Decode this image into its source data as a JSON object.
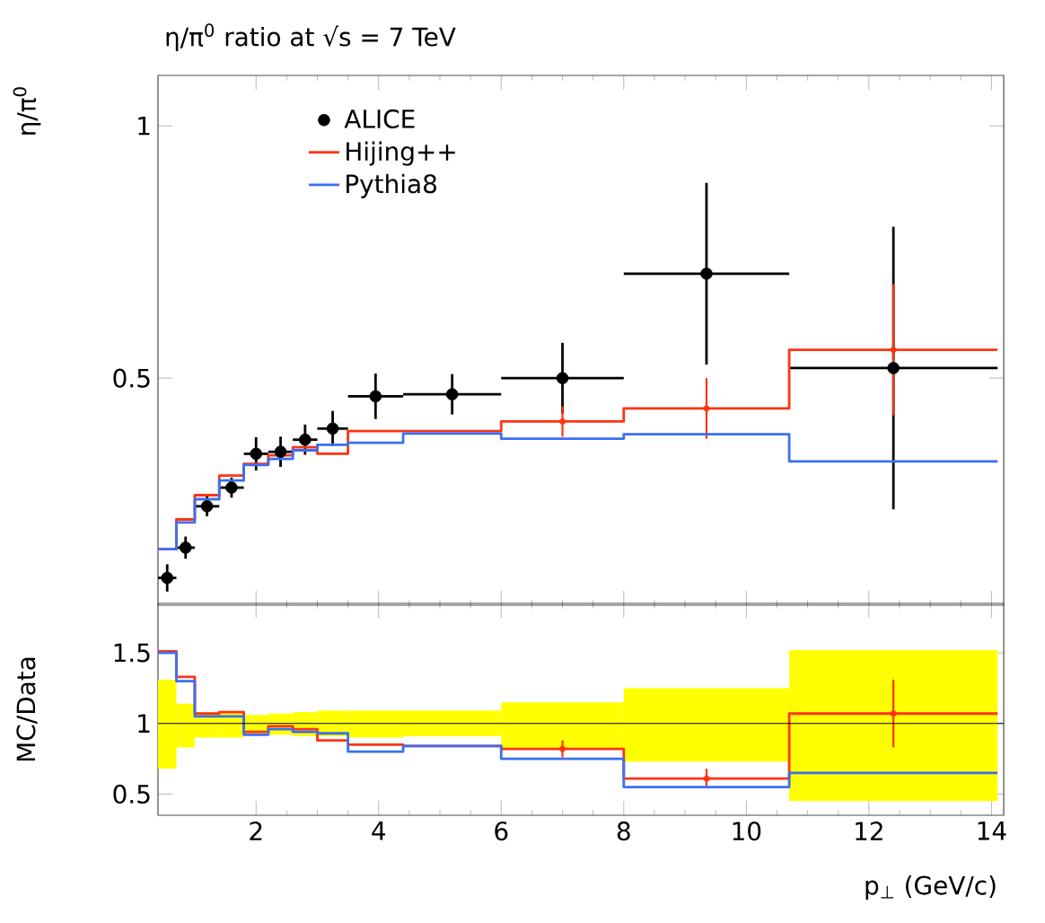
{
  "chart_data": [
    {
      "type": "histogram",
      "title": "η/π$^{0}$ ratio at √s = 7 TeV",
      "ylabel": "η/π$^{0}$",
      "bins": [
        0.4,
        0.7,
        1.0,
        1.4,
        1.8,
        2.2,
        2.6,
        3.0,
        3.5,
        4.4,
        6,
        8,
        10.7,
        14.1
      ],
      "xlim": [
        0.4,
        14.2
      ],
      "xticks": [
        2,
        4,
        6,
        8,
        10,
        12,
        14
      ],
      "ylim": [
        0.05,
        1.1
      ],
      "yticks": [
        0.5,
        1
      ],
      "tick_labels": "y",
      "legend": "top left",
      "grid": false,
      "series": [
        {
          "name": "ALICE",
          "type": "scatter",
          "marker": "circle",
          "color": "#000000",
          "x": [
            0.55,
            0.85,
            1.2,
            1.6,
            2.0,
            2.4,
            2.8,
            3.25,
            3.95,
            5.2,
            7.0,
            9.35,
            12.4
          ],
          "values": [
            0.104,
            0.164,
            0.246,
            0.283,
            0.35,
            0.354,
            0.378,
            0.4,
            0.464,
            0.468,
            0.5,
            0.707,
            0.52
          ],
          "errors": [
            0.027,
            0.022,
            0.02,
            0.02,
            0.033,
            0.03,
            0.03,
            0.035,
            0.045,
            0.04,
            0.07,
            0.18,
            0.28
          ],
          "xerrors": [
            0.15,
            0.15,
            0.2,
            0.2,
            0.2,
            0.2,
            0.2,
            0.25,
            0.45,
            0.8,
            1,
            1.35,
            1.7
          ]
        },
        {
          "name": "Hijing++",
          "color": "#ff3311",
          "values": [
            0.161,
            0.22,
            0.268,
            0.307,
            0.33,
            0.347,
            0.363,
            0.35,
            0.395,
            0.395,
            0.414,
            0.44,
            0.556
          ]
        },
        {
          "type": "scatter",
          "marker": "circle",
          "color": "#ff3311",
          "x": [
            7.0,
            9.35,
            12.4
          ],
          "values": [
            0.414,
            0.44,
            0.556
          ],
          "errors": [
            0.03,
            0.06,
            0.13
          ]
        },
        {
          "name": "Pythia8",
          "color": "#3b6ff0",
          "values": [
            0.161,
            0.214,
            0.26,
            0.297,
            0.328,
            0.34,
            0.357,
            0.368,
            0.372,
            0.39,
            0.38,
            0.389,
            0.335
          ]
        }
      ]
    },
    {
      "type": "histogram",
      "xlabel": "p$_{⊥}$ (GeV/c)",
      "ylabel": "MC/Data",
      "bins": [
        0.4,
        0.7,
        1.0,
        1.4,
        1.8,
        2.2,
        2.6,
        3.0,
        3.5,
        4.4,
        6,
        8,
        10.7,
        14.1
      ],
      "xlim": [
        0.4,
        14.2
      ],
      "xticks": [
        2,
        4,
        6,
        8,
        10,
        12,
        14
      ],
      "ylim": [
        0.35,
        1.85
      ],
      "yticks": [
        0.5,
        1,
        1.5
      ],
      "grid": false,
      "ref_lines": [
        {
          "axis": "y",
          "value": 1,
          "color": "#000000"
        }
      ],
      "series": [
        {
          "type": "bar",
          "color": "#ffff00",
          "x": [
            0.55,
            0.85,
            1.2,
            1.6,
            2.0,
            2.4,
            2.8,
            3.25,
            3.95,
            5.2,
            7.0,
            9.35,
            12.4
          ],
          "base": [
            0.68,
            0.83,
            0.9,
            0.9,
            0.93,
            0.92,
            0.91,
            0.91,
            0.9,
            0.91,
            0.82,
            0.73,
            0.45
          ],
          "values": [
            0.63,
            0.31,
            0.18,
            0.18,
            0.13,
            0.15,
            0.17,
            0.18,
            0.19,
            0.18,
            0.33,
            0.52,
            1.07
          ]
        },
        {
          "color": "#ff3311",
          "values": [
            1.51,
            1.33,
            1.07,
            1.08,
            0.94,
            0.98,
            0.96,
            0.88,
            0.85,
            0.84,
            0.82,
            0.61,
            1.07
          ]
        },
        {
          "type": "scatter",
          "marker": "circle",
          "color": "#ff3311",
          "x": [
            7.0,
            9.35,
            12.4
          ],
          "values": [
            0.82,
            0.61,
            1.07
          ],
          "errors": [
            0.06,
            0.07,
            0.24
          ]
        },
        {
          "color": "#3b6ff0",
          "values": [
            1.5,
            1.3,
            1.05,
            1.05,
            0.92,
            0.96,
            0.94,
            0.93,
            0.8,
            0.84,
            0.75,
            0.55,
            0.65
          ]
        }
      ]
    }
  ]
}
